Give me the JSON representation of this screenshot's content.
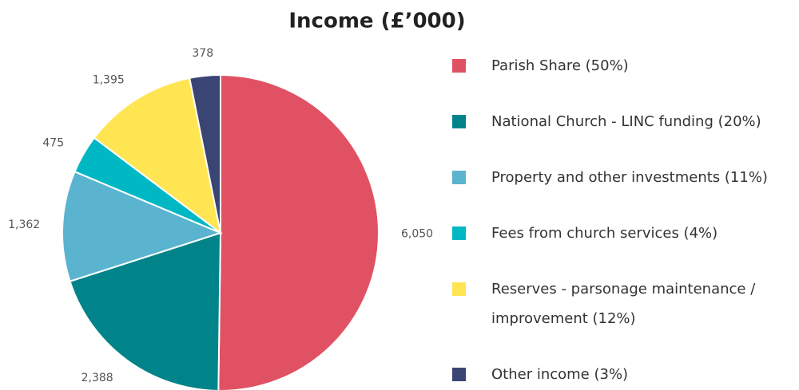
{
  "chart_data": {
    "type": "pie",
    "title": "Income (£’000)",
    "categories": [
      "Parish Share (50%)",
      "National Church - LINC funding (20%)",
      "Property and other investments (11%)",
      "Fees from church services (4%)",
      "Reserves - parsonage maintenance / improvement (12%)",
      "Other income (3%)"
    ],
    "values": [
      6050,
      2388,
      1362,
      475,
      1395,
      378
    ],
    "value_labels": [
      "6,050",
      "2,388",
      "1,362",
      "475",
      "1,395",
      "378"
    ],
    "colors": [
      "#e05263",
      "#00848a",
      "#5ab4cf",
      "#00b8c4",
      "#ffe552",
      "#3b4574"
    ]
  }
}
